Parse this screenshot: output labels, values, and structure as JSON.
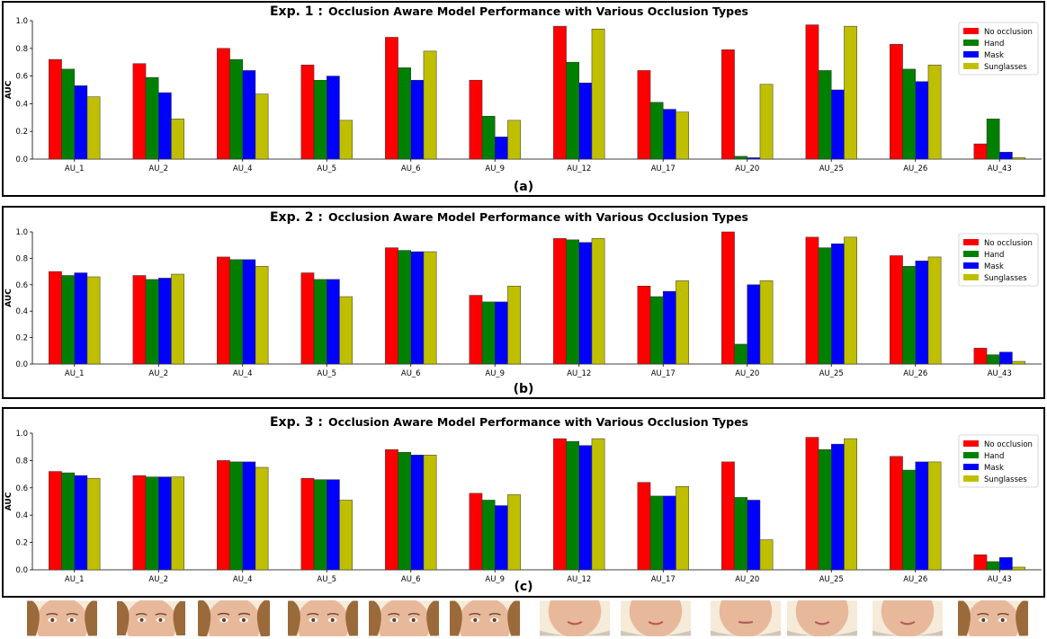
{
  "colors": {
    "no_occlusion": "#ff0000",
    "hand": "#008000",
    "mask": "#0000ff",
    "sunglasses": "#bfbf00",
    "frame": "#000000",
    "skin": "#e8b89a"
  },
  "panels": [
    {
      "exp_label": "Exp. 1 :",
      "title_rest": "Occlusion Aware Model Performance with Various Occlusion Types",
      "caption": "(a)"
    },
    {
      "exp_label": "Exp. 2 :",
      "title_rest": "Occlusion Aware Model Performance with Various Occlusion Types",
      "caption": "(b)"
    },
    {
      "exp_label": "Exp. 3 :",
      "title_rest": "Occlusion Aware Model Performance with Various Occlusion Types",
      "caption": "(c)"
    }
  ],
  "faces": [
    {
      "name": "face-au-1"
    },
    {
      "name": "face-au-2"
    },
    {
      "name": "face-au-4"
    },
    {
      "name": "face-au-5"
    },
    {
      "name": "face-au-6"
    },
    {
      "name": "face-au-9"
    },
    {
      "name": "face-au-12"
    },
    {
      "name": "face-au-17"
    },
    {
      "name": "face-au-20"
    },
    {
      "name": "face-au-25"
    },
    {
      "name": "face-au-26"
    },
    {
      "name": "face-au-43"
    }
  ],
  "chart_data": [
    {
      "type": "bar",
      "title": "Exp. 1 :  Occlusion Aware Model Performance with Various Occlusion Types",
      "xlabel": "",
      "ylabel": "AUC",
      "ylim": [
        0,
        1.0
      ],
      "yticks": [
        "0.0",
        "0.2",
        "0.4",
        "0.6",
        "0.8",
        "1.0"
      ],
      "legend_position": "top-right",
      "categories": [
        "AU_1",
        "AU_2",
        "AU_4",
        "AU_5",
        "AU_6",
        "AU_9",
        "AU_12",
        "AU_17",
        "AU_20",
        "AU_25",
        "AU_26",
        "AU_43"
      ],
      "series": [
        {
          "name": "No occlusion",
          "values": [
            0.72,
            0.69,
            0.8,
            0.68,
            0.88,
            0.57,
            0.96,
            0.64,
            0.79,
            0.97,
            0.83,
            0.11
          ]
        },
        {
          "name": "Hand",
          "values": [
            0.65,
            0.59,
            0.72,
            0.57,
            0.66,
            0.31,
            0.7,
            0.41,
            0.02,
            0.64,
            0.65,
            0.29
          ]
        },
        {
          "name": "Mask",
          "values": [
            0.53,
            0.48,
            0.64,
            0.6,
            0.57,
            0.16,
            0.55,
            0.36,
            0.01,
            0.5,
            0.56,
            0.05
          ]
        },
        {
          "name": "Sunglasses",
          "values": [
            0.45,
            0.29,
            0.47,
            0.28,
            0.78,
            0.28,
            0.94,
            0.34,
            0.54,
            0.96,
            0.68,
            0.01
          ]
        }
      ]
    },
    {
      "type": "bar",
      "title": "Exp. 2 :  Occlusion Aware Model Performance with Various Occlusion Types",
      "xlabel": "",
      "ylabel": "AUC",
      "ylim": [
        0,
        1.0
      ],
      "yticks": [
        "0.0",
        "0.2",
        "0.4",
        "0.6",
        "0.8",
        "1.0"
      ],
      "legend_position": "top-right",
      "categories": [
        "AU_1",
        "AU_2",
        "AU_4",
        "AU_5",
        "AU_6",
        "AU_9",
        "AU_12",
        "AU_17",
        "AU_20",
        "AU_25",
        "AU_26",
        "AU_43"
      ],
      "series": [
        {
          "name": "No occlusion",
          "values": [
            0.7,
            0.67,
            0.81,
            0.69,
            0.88,
            0.52,
            0.95,
            0.59,
            1.0,
            0.96,
            0.82,
            0.12
          ]
        },
        {
          "name": "Hand",
          "values": [
            0.67,
            0.64,
            0.79,
            0.64,
            0.86,
            0.47,
            0.94,
            0.51,
            0.15,
            0.88,
            0.74,
            0.07
          ]
        },
        {
          "name": "Mask",
          "values": [
            0.69,
            0.65,
            0.79,
            0.64,
            0.85,
            0.47,
            0.92,
            0.55,
            0.6,
            0.91,
            0.78,
            0.09
          ]
        },
        {
          "name": "Sunglasses",
          "values": [
            0.66,
            0.68,
            0.74,
            0.51,
            0.85,
            0.59,
            0.95,
            0.63,
            0.63,
            0.96,
            0.81,
            0.02
          ]
        }
      ]
    },
    {
      "type": "bar",
      "title": "Exp. 3 :  Occlusion Aware Model Performance with Various Occlusion Types",
      "xlabel": "",
      "ylabel": "AUC",
      "ylim": [
        0,
        1.0
      ],
      "yticks": [
        "0.0",
        "0.2",
        "0.4",
        "0.6",
        "0.8",
        "1.0"
      ],
      "legend_position": "top-right",
      "categories": [
        "AU_1",
        "AU_2",
        "AU_4",
        "AU_5",
        "AU_6",
        "AU_9",
        "AU_12",
        "AU_17",
        "AU_20",
        "AU_25",
        "AU_26",
        "AU_43"
      ],
      "series": [
        {
          "name": "No occlusion",
          "values": [
            0.72,
            0.69,
            0.8,
            0.67,
            0.88,
            0.56,
            0.96,
            0.64,
            0.79,
            0.97,
            0.83,
            0.11
          ]
        },
        {
          "name": "Hand",
          "values": [
            0.71,
            0.68,
            0.79,
            0.66,
            0.86,
            0.51,
            0.94,
            0.54,
            0.53,
            0.88,
            0.73,
            0.06
          ]
        },
        {
          "name": "Mask",
          "values": [
            0.69,
            0.68,
            0.79,
            0.66,
            0.84,
            0.47,
            0.91,
            0.54,
            0.51,
            0.92,
            0.79,
            0.09
          ]
        },
        {
          "name": "Sunglasses",
          "values": [
            0.67,
            0.68,
            0.75,
            0.51,
            0.84,
            0.55,
            0.96,
            0.61,
            0.22,
            0.96,
            0.79,
            0.02
          ]
        }
      ]
    }
  ]
}
